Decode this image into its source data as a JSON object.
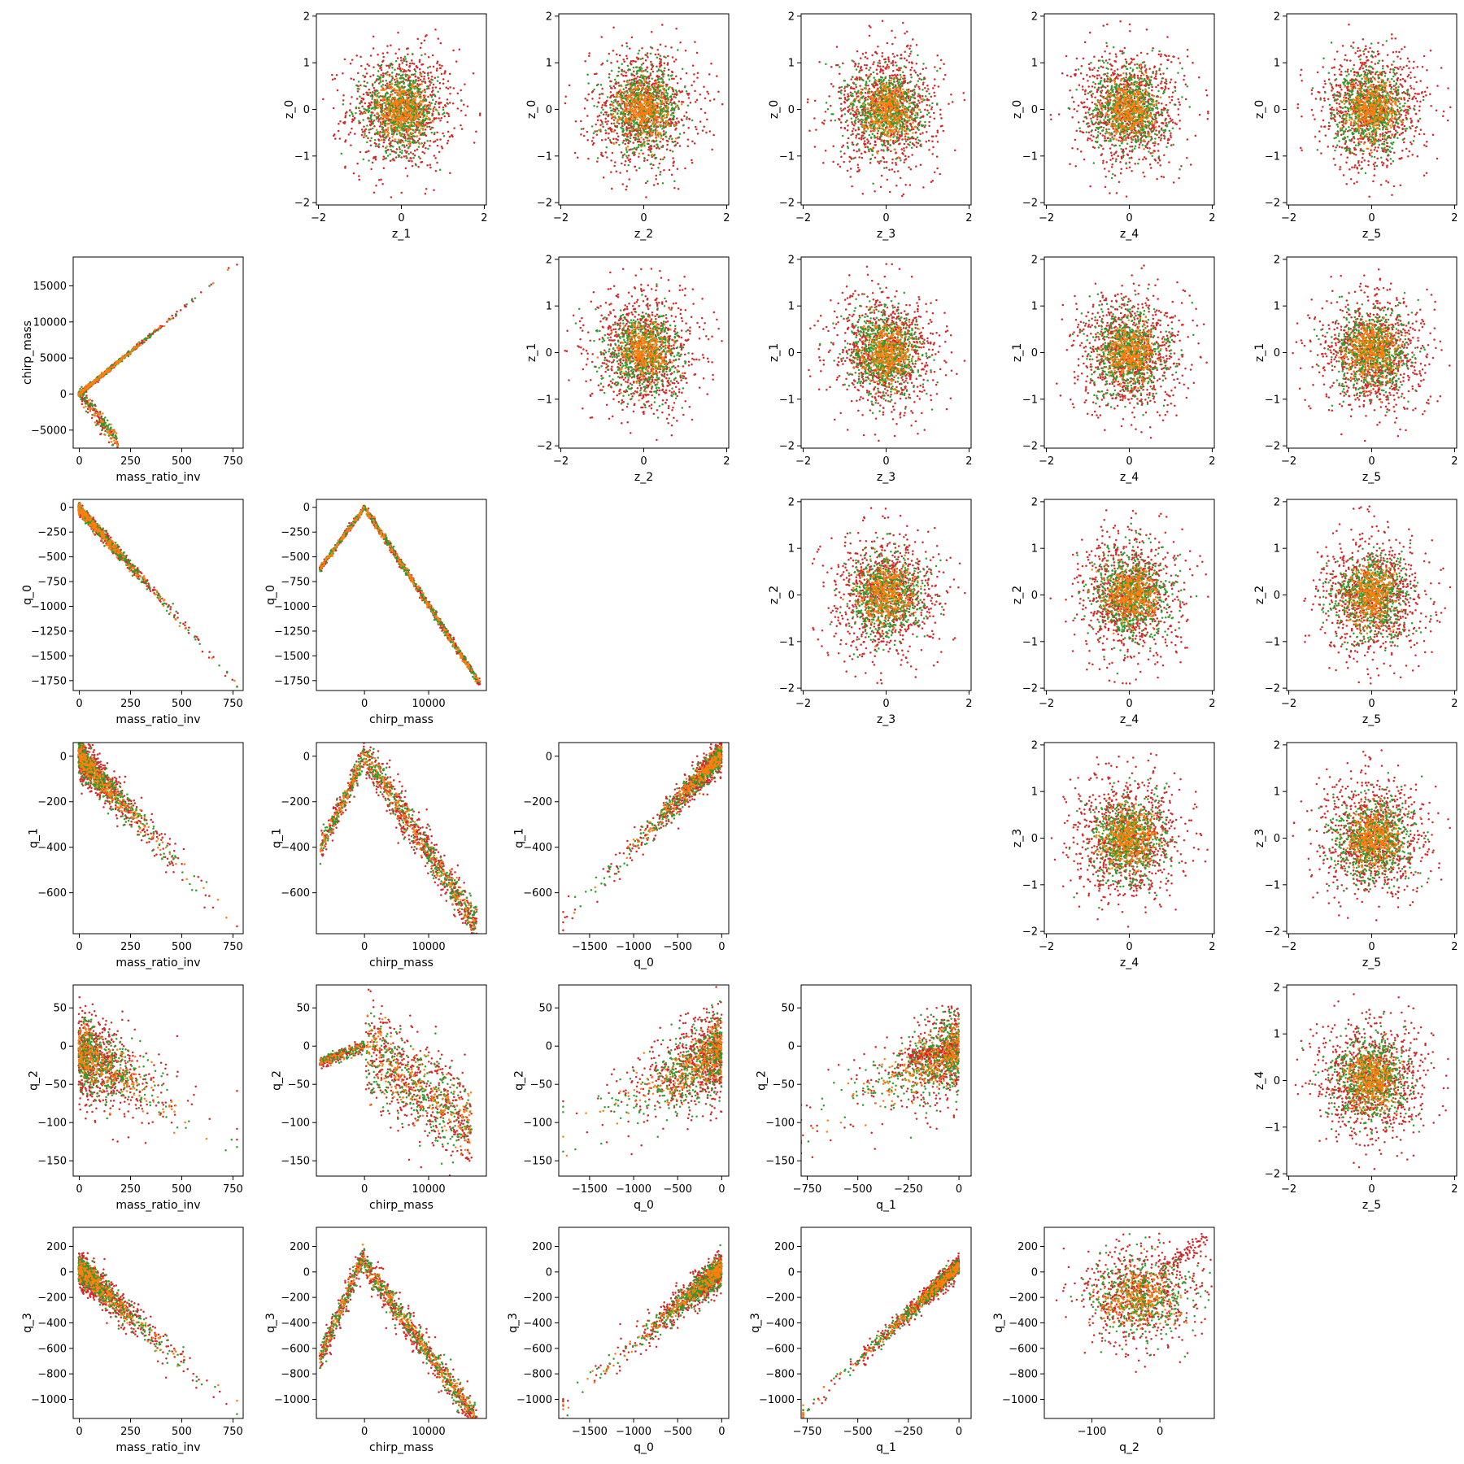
{
  "colors": {
    "red": "#d62728",
    "green": "#2ca02c",
    "orange": "#ff7f0e",
    "axes": "#000000",
    "background": "#ffffff"
  },
  "chart_data": {
    "type": "scatter",
    "layout": "pair-plot grid, 6 rows x 6 columns; lower triangle = physical parameters vs q components, upper triangle = latent z components; diagonal empty",
    "series_colors": [
      "#d62728",
      "#2ca02c",
      "#ff7f0e"
    ],
    "variables": {
      "mass_ratio_inv": {
        "label": "mass_ratio_inv",
        "lim": [
          -30,
          800
        ],
        "ticks": [
          0,
          250,
          500,
          750
        ],
        "tick_labels": [
          "0",
          "250",
          "500",
          "750"
        ]
      },
      "chirp_mass_row": {
        "label": "chirp_mass",
        "lim": [
          -7500,
          19000
        ],
        "ticks": [
          -5000,
          0,
          5000,
          10000,
          15000
        ],
        "tick_labels": [
          "−5000",
          "0",
          "5000",
          "10000",
          "15000"
        ]
      },
      "chirp_mass_col": {
        "label": "chirp_mass",
        "lim": [
          -7500,
          19000
        ],
        "ticks": [
          0,
          10000
        ],
        "tick_labels": [
          "0",
          "10000"
        ]
      },
      "q_0_row": {
        "label": "q_0",
        "lim": [
          -1850,
          80
        ],
        "ticks": [
          0,
          -250,
          -500,
          -750,
          -1000,
          -1250,
          -1500,
          -1750
        ],
        "tick_labels": [
          "0",
          "−250",
          "−500",
          "−750",
          "−1000",
          "−1250",
          "−1500",
          "−1750"
        ]
      },
      "q_0_col": {
        "label": "q_0",
        "lim": [
          -1850,
          80
        ],
        "ticks": [
          -1500,
          -1000,
          -500,
          0
        ],
        "tick_labels": [
          "−1500",
          "−1000",
          "−500",
          "0"
        ]
      },
      "q_1_row": {
        "label": "q_1",
        "lim": [
          -780,
          60
        ],
        "ticks": [
          0,
          -200,
          -400,
          -600
        ],
        "tick_labels": [
          "0",
          "−200",
          "−400",
          "−600"
        ]
      },
      "q_1_col": {
        "label": "q_1",
        "lim": [
          -780,
          60
        ],
        "ticks": [
          -750,
          -500,
          -250,
          0
        ],
        "tick_labels": [
          "−750",
          "−500",
          "−250",
          "0"
        ]
      },
      "q_2_row": {
        "label": "q_2",
        "lim": [
          -170,
          80
        ],
        "ticks": [
          50,
          0,
          -50,
          -100,
          -150
        ],
        "tick_labels": [
          "50",
          "0",
          "−50",
          "−100",
          "−150"
        ]
      },
      "q_2_col": {
        "label": "q_2",
        "lim": [
          -170,
          80
        ],
        "ticks": [
          -100,
          0
        ],
        "tick_labels": [
          "−100",
          "0"
        ]
      },
      "q_3": {
        "label": "q_3",
        "lim": [
          -1150,
          350
        ],
        "ticks": [
          200,
          0,
          -200,
          -400,
          -600,
          -800,
          -1000
        ],
        "tick_labels": [
          "200",
          "0",
          "−200",
          "−400",
          "−600",
          "−800",
          "−1000"
        ]
      },
      "z": {
        "lim": [
          -2.05,
          2.05
        ],
        "ticks": [
          -2,
          -1,
          0,
          1,
          2
        ],
        "tick_labels": [
          "−2",
          "−1",
          "0",
          "1",
          "2"
        ],
        "xticks": [
          -2,
          0,
          2
        ],
        "xtick_labels": [
          "−2",
          "0",
          "2"
        ]
      }
    },
    "panels": [
      {
        "row": 0,
        "col": 1,
        "x": "z_1",
        "y": "z_0",
        "kind": "gauss"
      },
      {
        "row": 0,
        "col": 2,
        "x": "z_2",
        "y": "z_0",
        "kind": "gauss"
      },
      {
        "row": 0,
        "col": 3,
        "x": "z_3",
        "y": "z_0",
        "kind": "gauss"
      },
      {
        "row": 0,
        "col": 4,
        "x": "z_4",
        "y": "z_0",
        "kind": "gauss"
      },
      {
        "row": 0,
        "col": 5,
        "x": "z_5",
        "y": "z_0",
        "kind": "gauss"
      },
      {
        "row": 1,
        "col": 0,
        "x": "mass_ratio_inv",
        "y": "chirp_mass",
        "kind": "mri_cm"
      },
      {
        "row": 1,
        "col": 2,
        "x": "z_2",
        "y": "z_1",
        "kind": "gauss"
      },
      {
        "row": 1,
        "col": 3,
        "x": "z_3",
        "y": "z_1",
        "kind": "gauss"
      },
      {
        "row": 1,
        "col": 4,
        "x": "z_4",
        "y": "z_1",
        "kind": "gauss"
      },
      {
        "row": 1,
        "col": 5,
        "x": "z_5",
        "y": "z_1",
        "kind": "gauss"
      },
      {
        "row": 2,
        "col": 0,
        "x": "mass_ratio_inv",
        "y": "q_0",
        "kind": "mri_q0"
      },
      {
        "row": 2,
        "col": 1,
        "x": "chirp_mass",
        "y": "q_0",
        "kind": "cm_q0"
      },
      {
        "row": 2,
        "col": 3,
        "x": "z_3",
        "y": "z_2",
        "kind": "gauss"
      },
      {
        "row": 2,
        "col": 4,
        "x": "z_4",
        "y": "z_2",
        "kind": "gauss"
      },
      {
        "row": 2,
        "col": 5,
        "x": "z_5",
        "y": "z_2",
        "kind": "gauss"
      },
      {
        "row": 3,
        "col": 0,
        "x": "mass_ratio_inv",
        "y": "q_1",
        "kind": "mri_q1"
      },
      {
        "row": 3,
        "col": 1,
        "x": "chirp_mass",
        "y": "q_1",
        "kind": "cm_q1"
      },
      {
        "row": 3,
        "col": 2,
        "x": "q_0",
        "y": "q_1",
        "kind": "q0_q1"
      },
      {
        "row": 3,
        "col": 4,
        "x": "z_4",
        "y": "z_3",
        "kind": "gauss"
      },
      {
        "row": 3,
        "col": 5,
        "x": "z_5",
        "y": "z_3",
        "kind": "gauss"
      },
      {
        "row": 4,
        "col": 0,
        "x": "mass_ratio_inv",
        "y": "q_2",
        "kind": "mri_q2"
      },
      {
        "row": 4,
        "col": 1,
        "x": "chirp_mass",
        "y": "q_2",
        "kind": "cm_q2"
      },
      {
        "row": 4,
        "col": 2,
        "x": "q_0",
        "y": "q_2",
        "kind": "q0_q2"
      },
      {
        "row": 4,
        "col": 3,
        "x": "q_1",
        "y": "q_2",
        "kind": "q1_q2"
      },
      {
        "row": 4,
        "col": 5,
        "x": "z_5",
        "y": "z_4",
        "kind": "gauss"
      },
      {
        "row": 5,
        "col": 0,
        "x": "mass_ratio_inv",
        "y": "q_3",
        "kind": "mri_q3"
      },
      {
        "row": 5,
        "col": 1,
        "x": "chirp_mass",
        "y": "q_3",
        "kind": "cm_q3"
      },
      {
        "row": 5,
        "col": 2,
        "x": "q_0",
        "y": "q_3",
        "kind": "q0_q3"
      },
      {
        "row": 5,
        "col": 3,
        "x": "q_1",
        "y": "q_3",
        "kind": "q1_q3"
      },
      {
        "row": 5,
        "col": 4,
        "x": "q_2",
        "y": "q_3",
        "kind": "q2_q3"
      }
    ],
    "trends": {
      "mri_cm": "two branches from origin: upper branch y ≈ 23.5·x up to (760, 17800); lower branch descending to about (180, -6500) for x < 200",
      "mri_q0": "linear decreasing, y ≈ -2.35·x, from (0, 0) to (760, -1780)",
      "cm_q0": "V shape with apex at (0, 0); left arm to (-7000, -630), right arm to (18000, -1780)",
      "mri_q1": "linear decreasing band, from (0, 0) to (760, -750)",
      "cm_q1": "inverted V, apex near (500, 0); left arm to (-7000, -420), right arm to (17500, -750)",
      "q0_q1": "linear increasing band from (-1800, -750) to (0, 0)",
      "mri_q2": "diffuse decreasing cloud, y from about 0 to -160 as x increases to 750",
      "cm_q2": "narrow branch for negative chirp_mass near y ≈ -20..0; diffuse cloud for positive chirp_mass spreading down to -160",
      "q0_q2": "diffuse increasing cloud, y about -160 at q_0 = -1800 rising to 0..60 near q_0 = 0",
      "q1_q2": "diffuse increasing cloud with dense red streak near q_1 from -250 to 0 at y ≈ -20..0",
      "mri_q3": "decreasing band from (0, 0..250) to (780, -1080)",
      "cm_q3": "inverted V with apex near (0, 250); left arm to (-7000, -650), right arm to (17500, -1080)",
      "q0_q3": "increasing curved band from (-1800, -1080) to (0, 250)",
      "q1_q3": "tight linear increasing band from (-770, -1080) to (30, 250)",
      "q2_q3": "diffuse cloud centered near (-30, -200) with red streak rising to (70, 290)",
      "gauss": "isotropic standard-normal-like clouds centered at (0, 0), red outermost, green middle, orange core"
    }
  }
}
